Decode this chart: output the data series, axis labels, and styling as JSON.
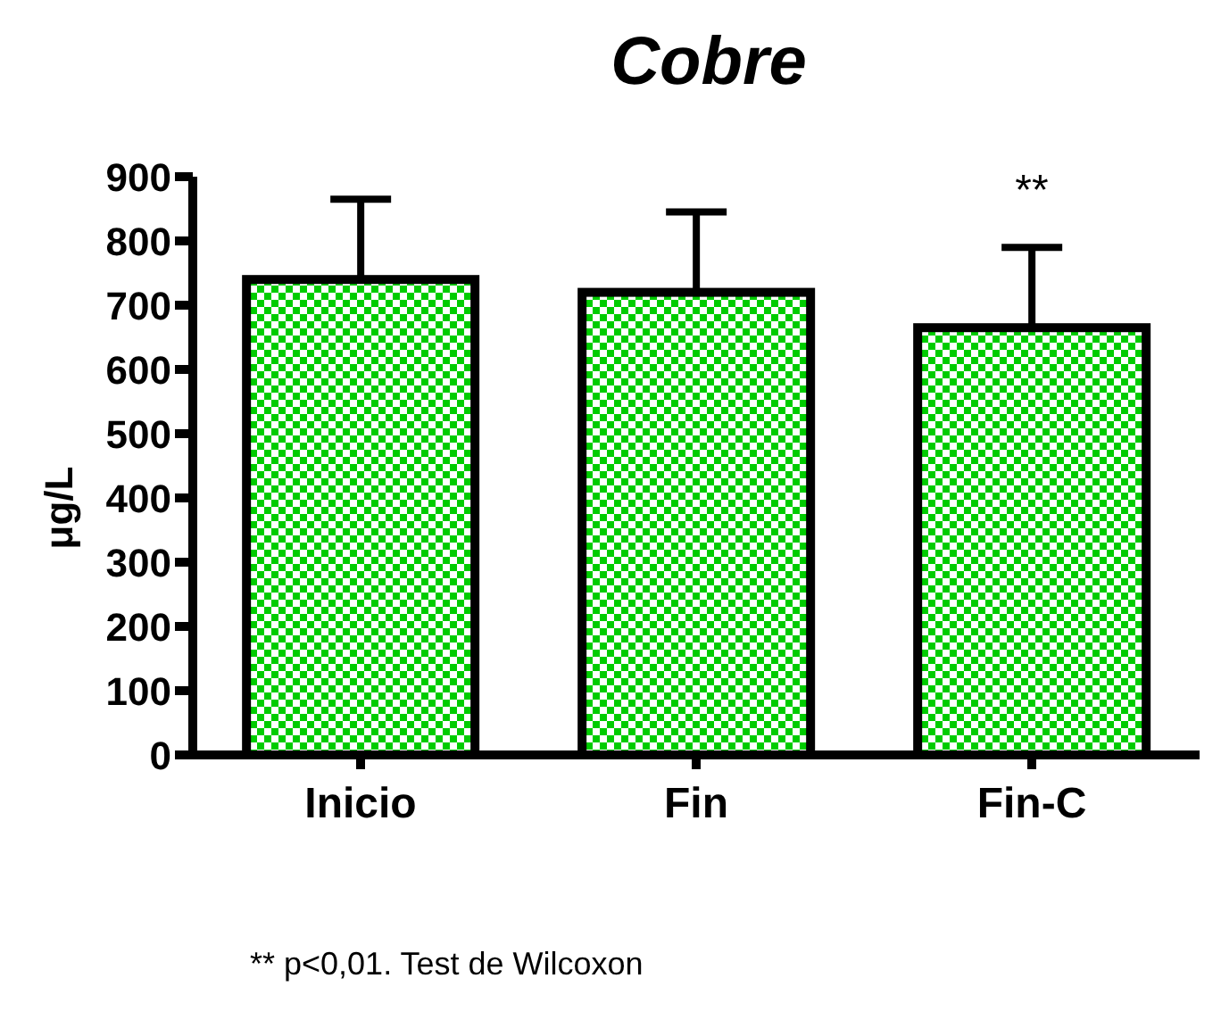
{
  "chart_data": {
    "type": "bar",
    "title": "Cobre",
    "ylabel": "μg/L",
    "categories": [
      "Inicio",
      "Fin",
      "Fin-C"
    ],
    "values": [
      740,
      720,
      665
    ],
    "errors": [
      [
        740,
        865
      ],
      [
        720,
        845
      ],
      [
        665,
        790
      ]
    ],
    "color": "#00cc00",
    "ylim": [
      0,
      900
    ],
    "yticks": [
      0,
      100,
      200,
      300,
      400,
      500,
      600,
      700,
      800,
      900
    ],
    "grid": false,
    "annotations": [
      "**",
      "** p<0,01. Test de Wilcoxon"
    ]
  }
}
